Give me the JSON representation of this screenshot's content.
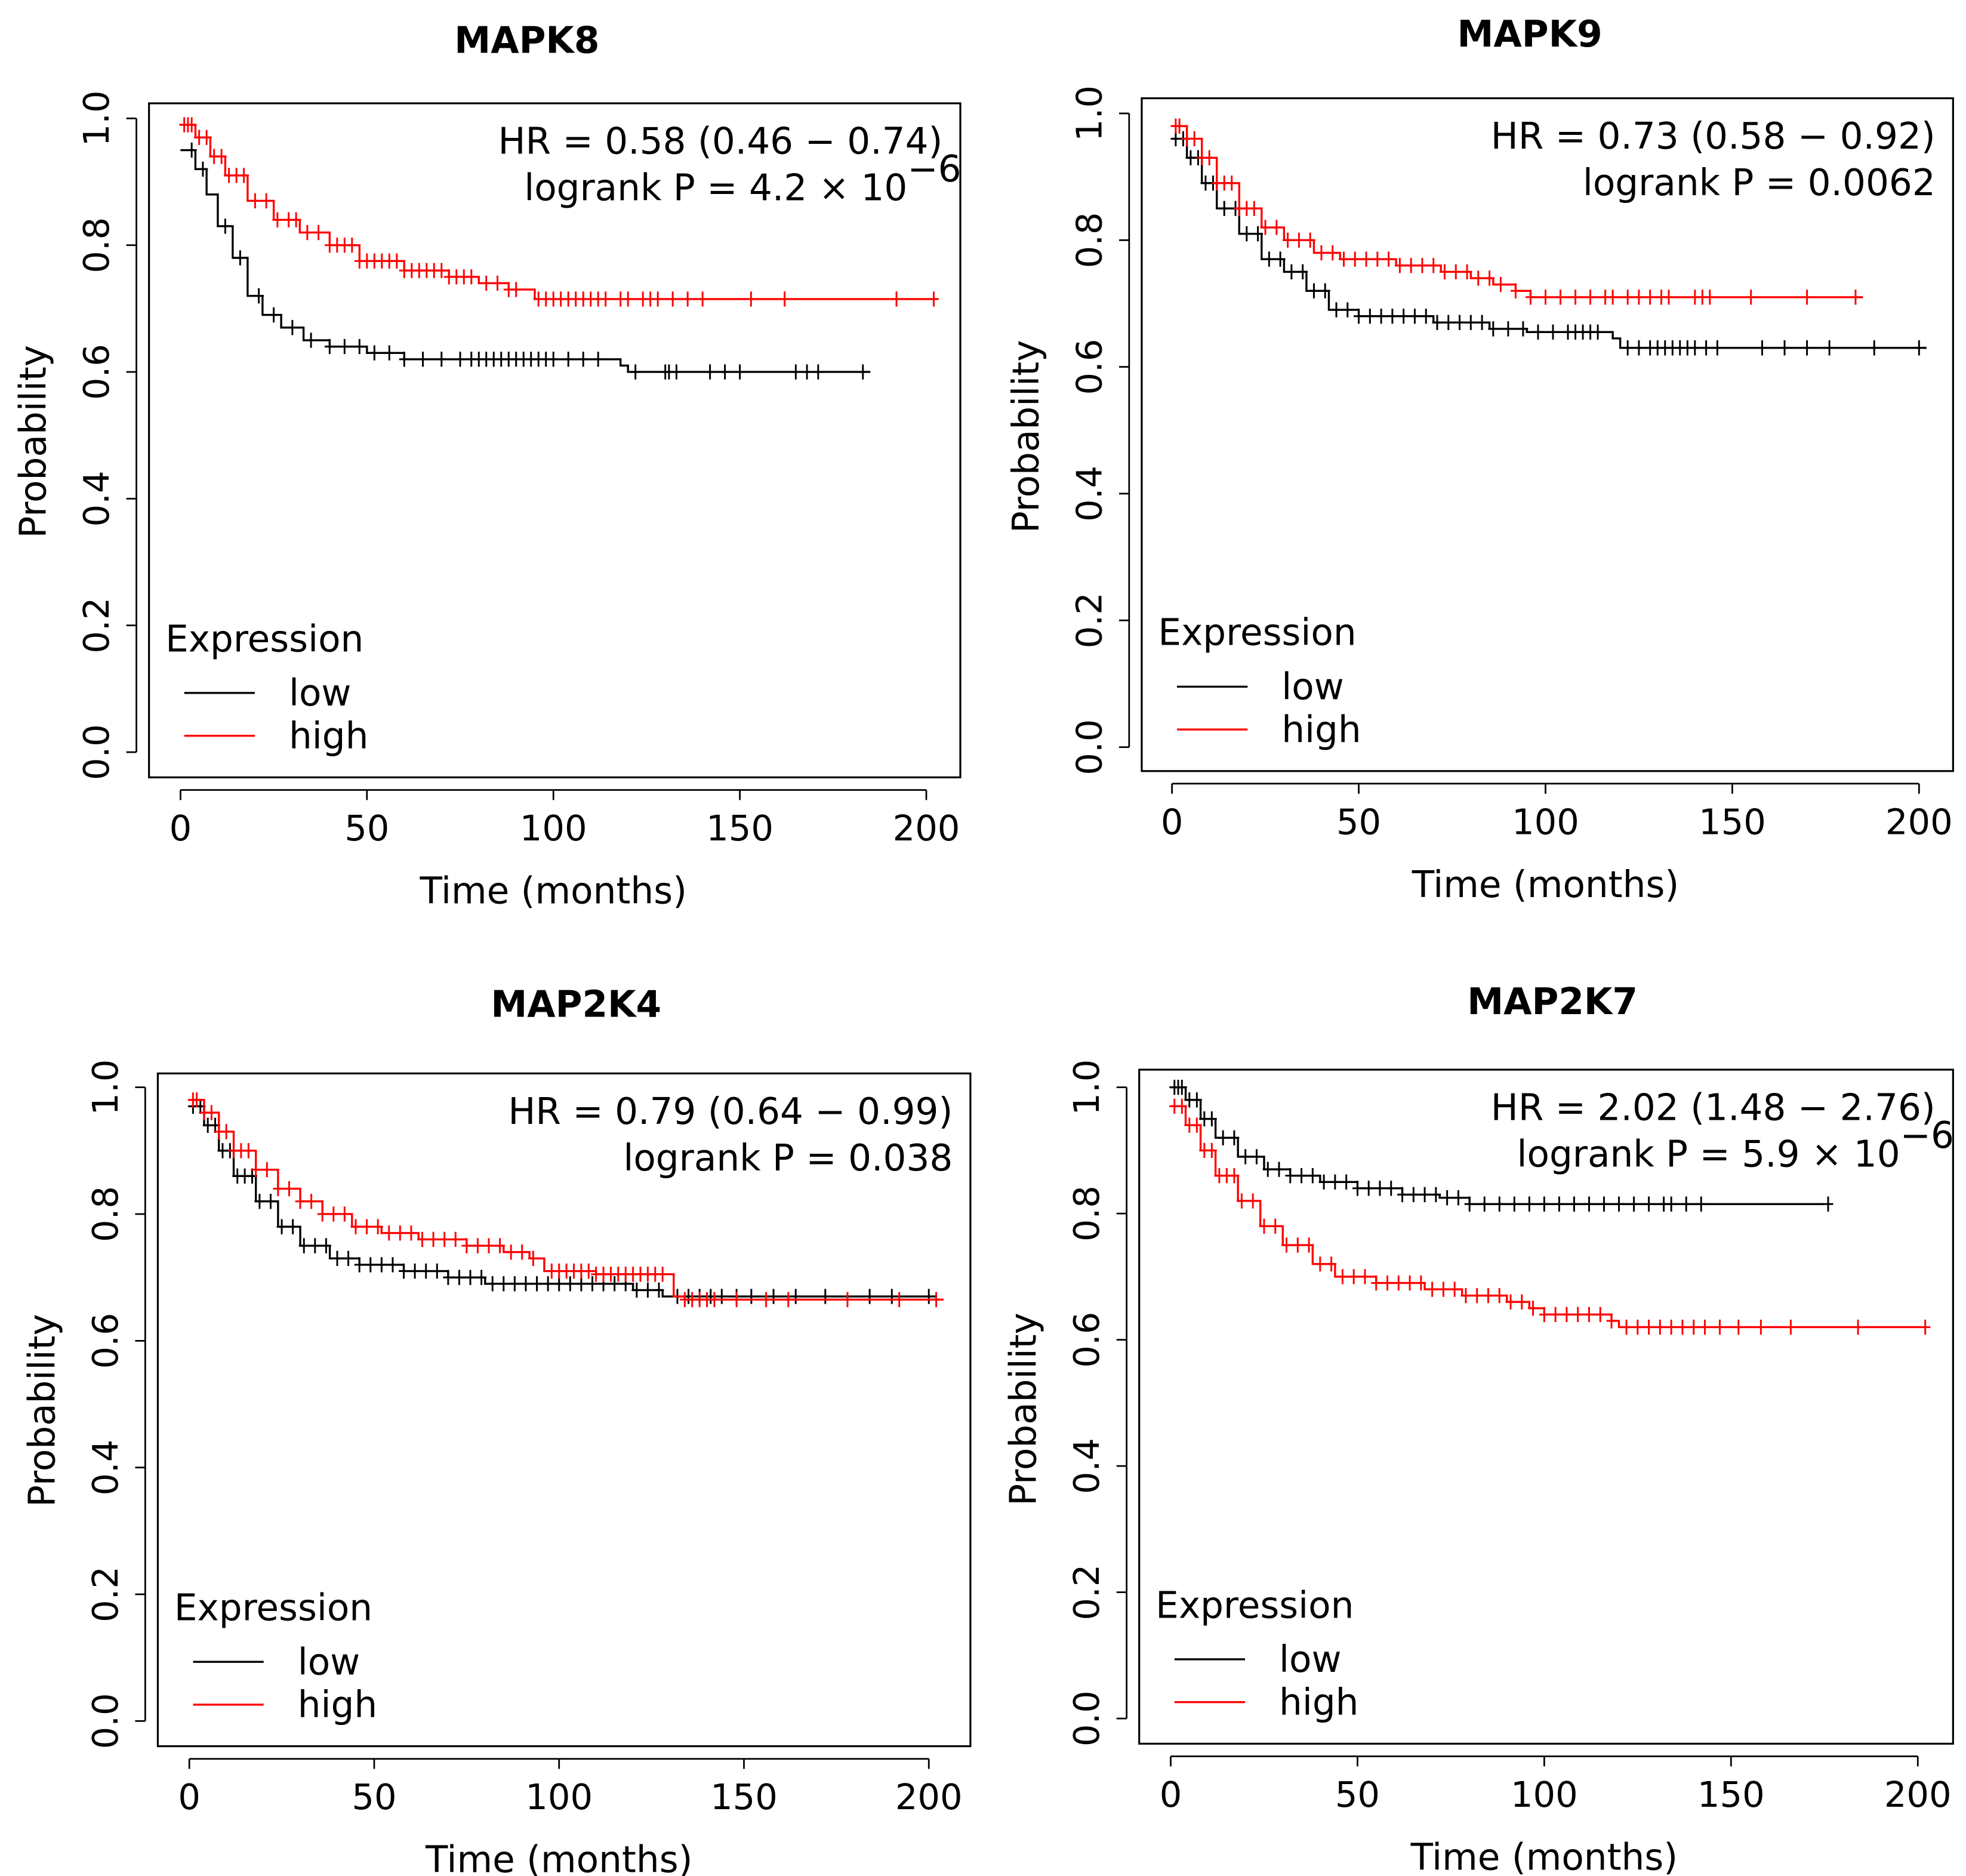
{
  "colors": {
    "low": "#000000",
    "high": "#ff0000",
    "axis": "#000000"
  },
  "chart_data": [
    {
      "type": "line",
      "title": "MAPK8",
      "xlabel": "Time (months)",
      "ylabel": "Probability",
      "xlim": [
        0,
        200
      ],
      "ylim": [
        0,
        1
      ],
      "xticks": [
        "0",
        "50",
        "100",
        "150",
        "200"
      ],
      "yticks": [
        "0.0",
        "0.2",
        "0.4",
        "0.6",
        "0.8",
        "1.0"
      ],
      "annotation": {
        "hr": "HR = 0.58 (0.46 − 0.74)",
        "p_prefix": "logrank P = 4.2 × 10",
        "p_exp": "−6"
      },
      "legend": {
        "title": "Expression",
        "position": "bottom-left",
        "entries": [
          "low",
          "high"
        ]
      },
      "series": [
        {
          "name": "low",
          "steps": [
            [
              0,
              0.95
            ],
            [
              4,
              0.92
            ],
            [
              7,
              0.88
            ],
            [
              10,
              0.83
            ],
            [
              14,
              0.78
            ],
            [
              18,
              0.72
            ],
            [
              22,
              0.69
            ],
            [
              27,
              0.67
            ],
            [
              33,
              0.65
            ],
            [
              40,
              0.64
            ],
            [
              50,
              0.63
            ],
            [
              60,
              0.62
            ],
            [
              118,
              0.61
            ],
            [
              120,
              0.6
            ]
          ],
          "end": 185,
          "censor": [
            3,
            6,
            12,
            16,
            21,
            25,
            30,
            35,
            40,
            44,
            48,
            52,
            56,
            60,
            65,
            70,
            75,
            78,
            80,
            82,
            84,
            86,
            88,
            90,
            92,
            94,
            96,
            98,
            100,
            104,
            108,
            112,
            122,
            130,
            131,
            133,
            142,
            146,
            150,
            165,
            168,
            171,
            183
          ]
        },
        {
          "name": "high",
          "steps": [
            [
              0,
              0.99
            ],
            [
              4,
              0.97
            ],
            [
              8,
              0.94
            ],
            [
              12,
              0.91
            ],
            [
              18,
              0.87
            ],
            [
              25,
              0.84
            ],
            [
              32,
              0.82
            ],
            [
              40,
              0.8
            ],
            [
              48,
              0.775
            ],
            [
              60,
              0.76
            ],
            [
              72,
              0.75
            ],
            [
              80,
              0.74
            ],
            [
              88,
              0.73
            ],
            [
              95,
              0.715
            ]
          ],
          "end": 203,
          "censor": [
            1,
            2,
            3,
            5,
            7,
            9,
            11,
            13,
            15,
            17,
            20,
            23,
            26,
            29,
            31,
            34,
            37,
            40,
            42,
            44,
            46,
            48,
            50,
            52,
            54,
            56,
            58,
            60,
            62,
            64,
            66,
            68,
            70,
            72,
            74,
            76,
            78,
            82,
            85,
            88,
            90,
            96,
            98,
            100,
            102,
            104,
            106,
            108,
            110,
            112,
            114,
            118,
            120,
            124,
            126,
            128,
            132,
            136,
            140,
            153,
            162,
            192,
            202
          ]
        }
      ]
    },
    {
      "type": "line",
      "title": "MAPK9",
      "xlabel": "Time (months)",
      "ylabel": "Probability",
      "xlim": [
        0,
        200
      ],
      "ylim": [
        0,
        1
      ],
      "xticks": [
        "0",
        "50",
        "100",
        "150",
        "200"
      ],
      "yticks": [
        "0.0",
        "0.2",
        "0.4",
        "0.6",
        "0.8",
        "1.0"
      ],
      "annotation": {
        "hr": "HR = 0.73 (0.58 − 0.92)",
        "p_prefix": "logrank P = 0.0062",
        "p_exp": ""
      },
      "legend": {
        "title": "Expression",
        "position": "bottom-left",
        "entries": [
          "low",
          "high"
        ]
      },
      "series": [
        {
          "name": "low",
          "steps": [
            [
              0,
              0.96
            ],
            [
              4,
              0.93
            ],
            [
              8,
              0.89
            ],
            [
              12,
              0.85
            ],
            [
              18,
              0.81
            ],
            [
              24,
              0.77
            ],
            [
              30,
              0.75
            ],
            [
              36,
              0.72
            ],
            [
              42,
              0.69
            ],
            [
              50,
              0.68
            ],
            [
              70,
              0.67
            ],
            [
              85,
              0.66
            ],
            [
              95,
              0.655
            ],
            [
              118,
              0.645
            ],
            [
              120,
              0.63
            ]
          ],
          "end": 202,
          "censor": [
            1,
            3,
            5,
            7,
            9,
            11,
            14,
            17,
            20,
            23,
            26,
            29,
            32,
            35,
            38,
            41,
            44,
            47,
            50,
            53,
            56,
            59,
            62,
            65,
            68,
            71,
            74,
            77,
            80,
            83,
            86,
            90,
            94,
            98,
            102,
            106,
            108,
            110,
            112,
            114,
            122,
            125,
            128,
            130,
            132,
            134,
            136,
            138,
            140,
            143,
            146,
            158,
            164,
            170,
            176,
            188,
            200
          ]
        },
        {
          "name": "high",
          "steps": [
            [
              0,
              0.98
            ],
            [
              4,
              0.96
            ],
            [
              8,
              0.93
            ],
            [
              12,
              0.89
            ],
            [
              18,
              0.85
            ],
            [
              24,
              0.82
            ],
            [
              30,
              0.8
            ],
            [
              38,
              0.78
            ],
            [
              45,
              0.77
            ],
            [
              60,
              0.76
            ],
            [
              72,
              0.75
            ],
            [
              80,
              0.74
            ],
            [
              86,
              0.73
            ],
            [
              92,
              0.72
            ],
            [
              96,
              0.71
            ]
          ],
          "end": 185,
          "censor": [
            1,
            2,
            4,
            6,
            8,
            10,
            12,
            14,
            16,
            18,
            20,
            22,
            25,
            28,
            31,
            34,
            37,
            40,
            43,
            46,
            49,
            52,
            55,
            58,
            61,
            64,
            67,
            70,
            73,
            76,
            79,
            82,
            85,
            88,
            92,
            96,
            100,
            104,
            108,
            112,
            116,
            118,
            122,
            125,
            128,
            131,
            133,
            140,
            142,
            144,
            155,
            170,
            183
          ]
        }
      ]
    },
    {
      "type": "line",
      "title": "MAP2K4",
      "xlabel": "Time (months)",
      "ylabel": "Probability",
      "xlim": [
        0,
        200
      ],
      "ylim": [
        0,
        1
      ],
      "xticks": [
        "0",
        "50",
        "100",
        "150",
        "200"
      ],
      "yticks": [
        "0.0",
        "0.2",
        "0.4",
        "0.6",
        "0.8",
        "1.0"
      ],
      "annotation": {
        "hr": "HR = 0.79 (0.64 − 0.99)",
        "p_prefix": "logrank P = 0.038",
        "p_exp": ""
      },
      "legend": {
        "title": "Expression",
        "position": "bottom-left",
        "entries": [
          "low",
          "high"
        ]
      },
      "series": [
        {
          "name": "low",
          "steps": [
            [
              0,
              0.97
            ],
            [
              4,
              0.94
            ],
            [
              8,
              0.9
            ],
            [
              12,
              0.86
            ],
            [
              18,
              0.82
            ],
            [
              24,
              0.78
            ],
            [
              30,
              0.75
            ],
            [
              38,
              0.73
            ],
            [
              46,
              0.72
            ],
            [
              58,
              0.71
            ],
            [
              70,
              0.7
            ],
            [
              80,
              0.69
            ],
            [
              120,
              0.68
            ],
            [
              128,
              0.67
            ]
          ],
          "end": 202,
          "censor": [
            1,
            3,
            5,
            7,
            9,
            11,
            13,
            15,
            17,
            19,
            22,
            25,
            28,
            31,
            34,
            37,
            40,
            43,
            46,
            49,
            52,
            55,
            58,
            61,
            64,
            67,
            70,
            73,
            76,
            79,
            82,
            85,
            88,
            91,
            94,
            97,
            100,
            103,
            106,
            109,
            112,
            115,
            118,
            121,
            124,
            127,
            132,
            135,
            138,
            141,
            144,
            148,
            152,
            158,
            164,
            172,
            184,
            190,
            200
          ]
        },
        {
          "name": "high",
          "steps": [
            [
              0,
              0.98
            ],
            [
              4,
              0.96
            ],
            [
              8,
              0.93
            ],
            [
              12,
              0.9
            ],
            [
              18,
              0.87
            ],
            [
              24,
              0.84
            ],
            [
              30,
              0.82
            ],
            [
              36,
              0.8
            ],
            [
              44,
              0.78
            ],
            [
              52,
              0.77
            ],
            [
              62,
              0.76
            ],
            [
              75,
              0.75
            ],
            [
              85,
              0.74
            ],
            [
              92,
              0.73
            ],
            [
              96,
              0.71
            ],
            [
              110,
              0.705
            ],
            [
              131,
              0.67
            ],
            [
              134,
              0.665
            ]
          ],
          "end": 204,
          "censor": [
            1,
            2,
            4,
            6,
            8,
            10,
            12,
            14,
            16,
            18,
            21,
            24,
            27,
            30,
            33,
            36,
            39,
            42,
            45,
            48,
            51,
            54,
            57,
            60,
            63,
            66,
            69,
            72,
            75,
            78,
            81,
            84,
            87,
            90,
            93,
            98,
            100,
            102,
            104,
            106,
            108,
            110,
            112,
            114,
            116,
            118,
            120,
            122,
            124,
            126,
            128,
            134,
            136,
            138,
            140,
            142,
            148,
            156,
            162,
            178,
            192,
            202
          ]
        }
      ]
    },
    {
      "type": "line",
      "title": "MAP2K7",
      "xlabel": "Time (months)",
      "ylabel": "Probability",
      "xlim": [
        0,
        200
      ],
      "ylim": [
        0,
        1
      ],
      "xticks": [
        "0",
        "50",
        "100",
        "150",
        "200"
      ],
      "yticks": [
        "0.0",
        "0.2",
        "0.4",
        "0.6",
        "0.8",
        "1.0"
      ],
      "annotation": {
        "hr": "HR = 2.02 (1.48 − 2.76)",
        "p_prefix": "logrank P = 5.9 × 10",
        "p_exp": "−6"
      },
      "legend": {
        "title": "Expression",
        "position": "bottom-left",
        "entries": [
          "low",
          "high"
        ]
      },
      "series": [
        {
          "name": "low",
          "steps": [
            [
              0,
              1.0
            ],
            [
              4,
              0.98
            ],
            [
              8,
              0.95
            ],
            [
              12,
              0.92
            ],
            [
              18,
              0.89
            ],
            [
              25,
              0.87
            ],
            [
              32,
              0.86
            ],
            [
              40,
              0.85
            ],
            [
              50,
              0.84
            ],
            [
              62,
              0.83
            ],
            [
              72,
              0.825
            ],
            [
              80,
              0.815
            ]
          ],
          "end": 175,
          "censor": [
            1,
            2,
            3,
            5,
            7,
            9,
            11,
            14,
            17,
            20,
            23,
            26,
            29,
            32,
            35,
            38,
            41,
            44,
            47,
            50,
            53,
            56,
            59,
            62,
            65,
            68,
            71,
            74,
            77,
            80,
            84,
            88,
            92,
            96,
            100,
            104,
            108,
            112,
            116,
            120,
            124,
            128,
            132,
            134,
            138,
            142,
            176
          ]
        },
        {
          "name": "high",
          "steps": [
            [
              0,
              0.97
            ],
            [
              4,
              0.94
            ],
            [
              8,
              0.9
            ],
            [
              12,
              0.86
            ],
            [
              18,
              0.82
            ],
            [
              24,
              0.78
            ],
            [
              30,
              0.75
            ],
            [
              38,
              0.72
            ],
            [
              44,
              0.7
            ],
            [
              55,
              0.69
            ],
            [
              68,
              0.68
            ],
            [
              78,
              0.67
            ],
            [
              90,
              0.66
            ],
            [
              96,
              0.65
            ],
            [
              100,
              0.64
            ],
            [
              118,
              0.63
            ],
            [
              120,
              0.62
            ]
          ],
          "end": 202,
          "censor": [
            1,
            3,
            5,
            7,
            9,
            11,
            13,
            15,
            17,
            19,
            22,
            25,
            28,
            31,
            34,
            37,
            40,
            43,
            46,
            49,
            52,
            55,
            58,
            61,
            64,
            67,
            70,
            73,
            76,
            79,
            82,
            85,
            88,
            91,
            94,
            97,
            100,
            103,
            106,
            109,
            112,
            115,
            118,
            122,
            125,
            128,
            131,
            134,
            137,
            140,
            143,
            147,
            152,
            158,
            166,
            184,
            202
          ]
        }
      ]
    }
  ]
}
